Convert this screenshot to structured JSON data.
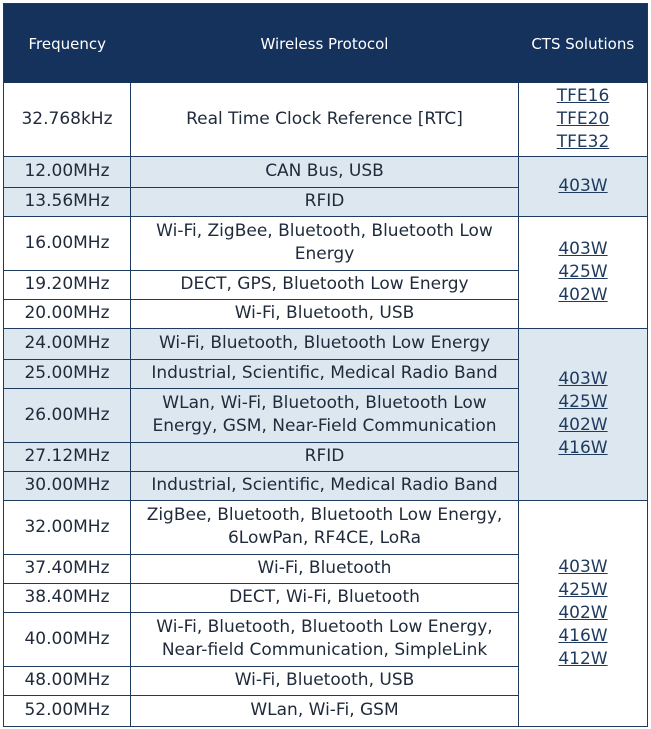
{
  "header": {
    "frequency": "Frequency",
    "protocol": "Wireless Protocol",
    "solutions": "CTS Solutions"
  },
  "groups": [
    {
      "solutions": [
        "TFE16",
        "TFE20",
        "TFE32"
      ],
      "rows": [
        {
          "frequency": "32.768kHz",
          "protocol": "Real Time Clock Reference [RTC]"
        }
      ]
    },
    {
      "solutions": [
        "403W"
      ],
      "rows": [
        {
          "frequency": "12.00MHz",
          "protocol": "CAN Bus, USB"
        },
        {
          "frequency": "13.56MHz",
          "protocol": "RFID"
        }
      ]
    },
    {
      "solutions": [
        "403W",
        "425W",
        "402W"
      ],
      "rows": [
        {
          "frequency": "16.00MHz",
          "protocol": "Wi-Fi, ZigBee, Bluetooth, Bluetooth Low Energy"
        },
        {
          "frequency": "19.20MHz",
          "protocol": "DECT, GPS, Bluetooth Low Energy"
        },
        {
          "frequency": "20.00MHz",
          "protocol": "Wi-Fi, Bluetooth, USB"
        }
      ]
    },
    {
      "solutions": [
        "403W",
        "425W",
        "402W",
        "416W"
      ],
      "rows": [
        {
          "frequency": "24.00MHz",
          "protocol": "Wi-Fi, Bluetooth, Bluetooth Low Energy"
        },
        {
          "frequency": "25.00MHz",
          "protocol": "Industrial, Scientific, Medical Radio Band"
        },
        {
          "frequency": "26.00MHz",
          "protocol": "WLan, Wi-Fi, Bluetooth, Bluetooth Low Energy, GSM, Near-Field Communication"
        },
        {
          "frequency": "27.12MHz",
          "protocol": "RFID"
        },
        {
          "frequency": "30.00MHz",
          "protocol": "Industrial, Scientific, Medical Radio Band"
        }
      ]
    },
    {
      "solutions": [
        "403W",
        "425W",
        "402W",
        "416W",
        "412W"
      ],
      "rows": [
        {
          "frequency": "32.00MHz",
          "protocol": "ZigBee, Bluetooth, Bluetooth Low Energy, 6LowPan, RF4CE, LoRa"
        },
        {
          "frequency": "37.40MHz",
          "protocol": "Wi-Fi, Bluetooth"
        },
        {
          "frequency": "38.40MHz",
          "protocol": "DECT, Wi-Fi, Bluetooth"
        },
        {
          "frequency": "40.00MHz",
          "protocol": "Wi-Fi, Bluetooth, Bluetooth Low Energy, Near-field Communication, SimpleLink"
        },
        {
          "frequency": "48.00MHz",
          "protocol": "Wi-Fi, Bluetooth, USB"
        },
        {
          "frequency": "52.00MHz",
          "protocol": "WLan, Wi-Fi, GSM"
        }
      ]
    }
  ]
}
